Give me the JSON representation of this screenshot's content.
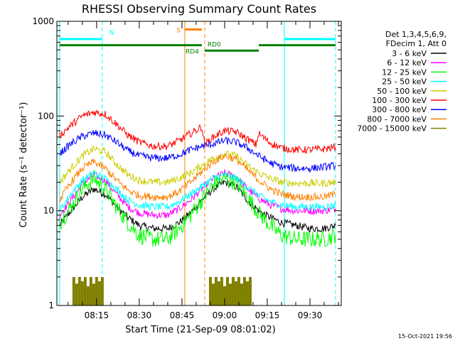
{
  "chart_data": {
    "type": "line",
    "title": "RHESSI Observing Summary Count Rates",
    "xlabel": "Start Time (21-Sep-09 08:01:02)",
    "ylabel": "Count Rate (s⁻¹ detector⁻¹)",
    "y_scale": "log",
    "ylim": [
      1,
      1000
    ],
    "xlim": [
      "08:01:02",
      "09:41:00"
    ],
    "x_ticks": [
      "08:15",
      "08:30",
      "08:45",
      "09:00",
      "09:15",
      "09:30"
    ],
    "y_ticks": [
      "1",
      "10",
      "100",
      "1000"
    ],
    "legend_position": "right",
    "legend_header": [
      "Det 1,3,4,5,6,9,",
      "FDecim 1, Att 0"
    ],
    "series": [
      {
        "name": "3 - 6 keV",
        "color": "#000000",
        "points": [
          [
            "08:02",
            7
          ],
          [
            "08:06",
            10
          ],
          [
            "08:10",
            14
          ],
          [
            "08:14",
            17
          ],
          [
            "08:18",
            15
          ],
          [
            "08:22",
            11
          ],
          [
            "08:26",
            8.5
          ],
          [
            "08:30",
            7
          ],
          [
            "08:35",
            6.5
          ],
          [
            "08:40",
            6.5
          ],
          [
            "08:44",
            7.5
          ],
          [
            "08:48",
            9.5
          ],
          [
            "08:52",
            13
          ],
          [
            "08:56",
            17
          ],
          [
            "09:00",
            20
          ],
          [
            "09:04",
            18
          ],
          [
            "09:08",
            13
          ],
          [
            "09:12",
            10
          ],
          [
            "09:16",
            8.5
          ],
          [
            "09:20",
            7.5
          ],
          [
            "09:25",
            7
          ],
          [
            "09:30",
            6.5
          ],
          [
            "09:35",
            6.5
          ],
          [
            "09:39",
            7
          ]
        ]
      },
      {
        "name": "6 - 12 keV",
        "color": "#ff00ff",
        "points": [
          [
            "08:02",
            9
          ],
          [
            "08:06",
            13
          ],
          [
            "08:10",
            19
          ],
          [
            "08:14",
            24
          ],
          [
            "08:18",
            21
          ],
          [
            "08:22",
            15
          ],
          [
            "08:26",
            11
          ],
          [
            "08:30",
            9.5
          ],
          [
            "08:35",
            9
          ],
          [
            "08:40",
            9
          ],
          [
            "08:44",
            10.5
          ],
          [
            "08:48",
            13
          ],
          [
            "08:52",
            17
          ],
          [
            "08:56",
            22
          ],
          [
            "09:00",
            25
          ],
          [
            "09:04",
            23
          ],
          [
            "09:08",
            17
          ],
          [
            "09:12",
            13.5
          ],
          [
            "09:16",
            11.5
          ],
          [
            "09:20",
            10.5
          ],
          [
            "09:25",
            10
          ],
          [
            "09:30",
            10
          ],
          [
            "09:35",
            10
          ],
          [
            "09:39",
            10.5
          ]
        ]
      },
      {
        "name": "12 - 25 keV",
        "color": "#00ff00",
        "points": [
          [
            "08:02",
            7.5
          ],
          [
            "08:06",
            11
          ],
          [
            "08:10",
            17
          ],
          [
            "08:14",
            22
          ],
          [
            "08:18",
            17
          ],
          [
            "08:22",
            11
          ],
          [
            "08:26",
            7.5
          ],
          [
            "08:30",
            5.5
          ],
          [
            "08:35",
            5
          ],
          [
            "08:40",
            5
          ],
          [
            "08:44",
            6.5
          ],
          [
            "08:48",
            9
          ],
          [
            "08:52",
            13
          ],
          [
            "08:56",
            19
          ],
          [
            "09:00",
            22
          ],
          [
            "09:04",
            20
          ],
          [
            "09:08",
            14
          ],
          [
            "09:12",
            9.5
          ],
          [
            "09:16",
            7
          ],
          [
            "09:20",
            5.5
          ],
          [
            "09:25",
            5
          ],
          [
            "09:30",
            5
          ],
          [
            "09:35",
            5
          ],
          [
            "09:39",
            5.5
          ]
        ]
      },
      {
        "name": "25 - 50 keV",
        "color": "#00ffff",
        "points": [
          [
            "08:02",
            10
          ],
          [
            "08:06",
            15
          ],
          [
            "08:10",
            21
          ],
          [
            "08:14",
            25
          ],
          [
            "08:18",
            22
          ],
          [
            "08:22",
            17
          ],
          [
            "08:26",
            13
          ],
          [
            "08:30",
            11.5
          ],
          [
            "08:35",
            11
          ],
          [
            "08:40",
            11
          ],
          [
            "08:44",
            12.5
          ],
          [
            "08:48",
            15
          ],
          [
            "08:52",
            18
          ],
          [
            "08:56",
            22
          ],
          [
            "09:00",
            24
          ],
          [
            "09:04",
            22
          ],
          [
            "09:08",
            18
          ],
          [
            "09:12",
            14.5
          ],
          [
            "09:16",
            12.5
          ],
          [
            "09:20",
            11.5
          ],
          [
            "09:25",
            11
          ],
          [
            "09:30",
            11
          ],
          [
            "09:35",
            11
          ],
          [
            "09:39",
            11.5
          ]
        ]
      },
      {
        "name": "50 - 100 keV",
        "color": "#cccc00",
        "points": [
          [
            "08:02",
            20
          ],
          [
            "08:06",
            28
          ],
          [
            "08:10",
            38
          ],
          [
            "08:14",
            45
          ],
          [
            "08:18",
            42
          ],
          [
            "08:22",
            31
          ],
          [
            "08:26",
            24
          ],
          [
            "08:30",
            21
          ],
          [
            "08:35",
            20
          ],
          [
            "08:40",
            20
          ],
          [
            "08:44",
            22
          ],
          [
            "08:48",
            25
          ],
          [
            "08:52",
            30
          ],
          [
            "08:56",
            36
          ],
          [
            "09:00",
            40
          ],
          [
            "09:04",
            38
          ],
          [
            "09:08",
            30
          ],
          [
            "09:12",
            25
          ],
          [
            "09:16",
            22
          ],
          [
            "09:20",
            20
          ],
          [
            "09:25",
            19.5
          ],
          [
            "09:30",
            19.5
          ],
          [
            "09:35",
            19.5
          ],
          [
            "09:39",
            20
          ]
        ]
      },
      {
        "name": "100 - 300 keV",
        "color": "#ff0000",
        "points": [
          [
            "08:02",
            62
          ],
          [
            "08:06",
            80
          ],
          [
            "08:10",
            100
          ],
          [
            "08:14",
            110
          ],
          [
            "08:18",
            105
          ],
          [
            "08:22",
            82
          ],
          [
            "08:26",
            63
          ],
          [
            "08:30",
            53
          ],
          [
            "08:35",
            48
          ],
          [
            "08:40",
            48
          ],
          [
            "08:44",
            55
          ],
          [
            "08:48",
            65
          ],
          [
            "08:52",
            77
          ],
          [
            "08:53",
            50
          ],
          [
            "08:56",
            60
          ],
          [
            "09:00",
            70
          ],
          [
            "09:04",
            68
          ],
          [
            "09:08",
            57
          ],
          [
            "09:11",
            50
          ],
          [
            "09:12",
            65
          ],
          [
            "09:16",
            52
          ],
          [
            "09:20",
            46
          ],
          [
            "09:25",
            44
          ],
          [
            "09:30",
            44
          ],
          [
            "09:35",
            45
          ],
          [
            "09:39",
            47
          ]
        ]
      },
      {
        "name": "300 - 800 keV",
        "color": "#0000ff",
        "points": [
          [
            "08:02",
            40
          ],
          [
            "08:06",
            51
          ],
          [
            "08:10",
            61
          ],
          [
            "08:14",
            66
          ],
          [
            "08:18",
            63
          ],
          [
            "08:22",
            53
          ],
          [
            "08:26",
            43
          ],
          [
            "08:30",
            38
          ],
          [
            "08:35",
            36
          ],
          [
            "08:40",
            36
          ],
          [
            "08:44",
            39
          ],
          [
            "08:48",
            44
          ],
          [
            "08:52",
            48
          ],
          [
            "08:56",
            51
          ],
          [
            "09:00",
            55
          ],
          [
            "09:04",
            53
          ],
          [
            "09:08",
            46
          ],
          [
            "09:12",
            38
          ],
          [
            "09:16",
            32
          ],
          [
            "09:20",
            29
          ],
          [
            "09:25",
            28
          ],
          [
            "09:30",
            28
          ],
          [
            "09:35",
            29
          ],
          [
            "09:39",
            30
          ]
        ]
      },
      {
        "name": "800 - 7000 keV",
        "color": "#ff8000",
        "points": [
          [
            "08:02",
            13
          ],
          [
            "08:06",
            20
          ],
          [
            "08:10",
            28
          ],
          [
            "08:14",
            33
          ],
          [
            "08:18",
            28
          ],
          [
            "08:22",
            21
          ],
          [
            "08:26",
            16.5
          ],
          [
            "08:30",
            14.5
          ],
          [
            "08:35",
            14
          ],
          [
            "08:40",
            14
          ],
          [
            "08:44",
            16
          ],
          [
            "08:48",
            20
          ],
          [
            "08:52",
            26
          ],
          [
            "08:56",
            33
          ],
          [
            "09:00",
            38
          ],
          [
            "09:04",
            35
          ],
          [
            "09:08",
            27
          ],
          [
            "09:12",
            21
          ],
          [
            "09:16",
            17
          ],
          [
            "09:20",
            15
          ],
          [
            "09:25",
            14
          ],
          [
            "09:30",
            14
          ],
          [
            "09:35",
            14
          ],
          [
            "09:39",
            15
          ]
        ]
      },
      {
        "name": "7000 - 15000 keV",
        "color": "#808000",
        "points": [
          [
            "08:07",
            2
          ],
          [
            "08:08",
            1.7
          ],
          [
            "08:09",
            2
          ],
          [
            "08:10",
            1.8
          ],
          [
            "08:11",
            2
          ],
          [
            "08:12",
            1.6
          ],
          [
            "08:13",
            2
          ],
          [
            "08:14",
            1.7
          ],
          [
            "08:15",
            2
          ],
          [
            "08:16",
            1.8
          ],
          [
            "08:17",
            2
          ],
          [
            "08:55",
            2
          ],
          [
            "08:56",
            1.7
          ],
          [
            "08:57",
            2
          ],
          [
            "08:58",
            1.8
          ],
          [
            "08:59",
            2
          ],
          [
            "09:00",
            1.6
          ],
          [
            "09:01",
            2
          ],
          [
            "09:02",
            1.7
          ],
          [
            "09:03",
            2
          ],
          [
            "09:04",
            1.8
          ],
          [
            "09:05",
            2
          ],
          [
            "09:06",
            1.7
          ],
          [
            "09:07",
            2
          ],
          [
            "09:08",
            1.8
          ],
          [
            "09:09",
            2
          ]
        ]
      }
    ],
    "annotations": [
      {
        "label": "N",
        "color": "#00ffff",
        "from": "08:02",
        "to": "08:17",
        "level": 650
      },
      {
        "label": "",
        "color": "#00ffff",
        "from": "09:21",
        "to": "09:39",
        "level": 650
      },
      {
        "label": "S",
        "color": "#ff8000",
        "from": "08:46",
        "to": "08:52",
        "level": 820
      },
      {
        "label": "RD4",
        "color": "#008000",
        "from": "08:02",
        "to": "08:52",
        "level": 560
      },
      {
        "label": "RD0",
        "color": "#008000",
        "from": "08:53",
        "to": "09:12",
        "level": 490
      },
      {
        "label": "",
        "color": "#008000",
        "from": "09:12",
        "to": "09:39",
        "level": 560
      }
    ],
    "vlines": [
      {
        "time": "08:02",
        "color": "#00ffff",
        "style": "solid"
      },
      {
        "time": "08:17",
        "color": "#00ffff",
        "style": "dashed"
      },
      {
        "time": "08:46",
        "color": "#ff8000",
        "style": "solid"
      },
      {
        "time": "08:53",
        "color": "#ff8000",
        "style": "dashed"
      },
      {
        "time": "09:21",
        "color": "#00ffff",
        "style": "solid"
      },
      {
        "time": "09:39",
        "color": "#00ffff",
        "style": "dashed"
      }
    ],
    "footer": "15-Oct-2021 19:56"
  }
}
